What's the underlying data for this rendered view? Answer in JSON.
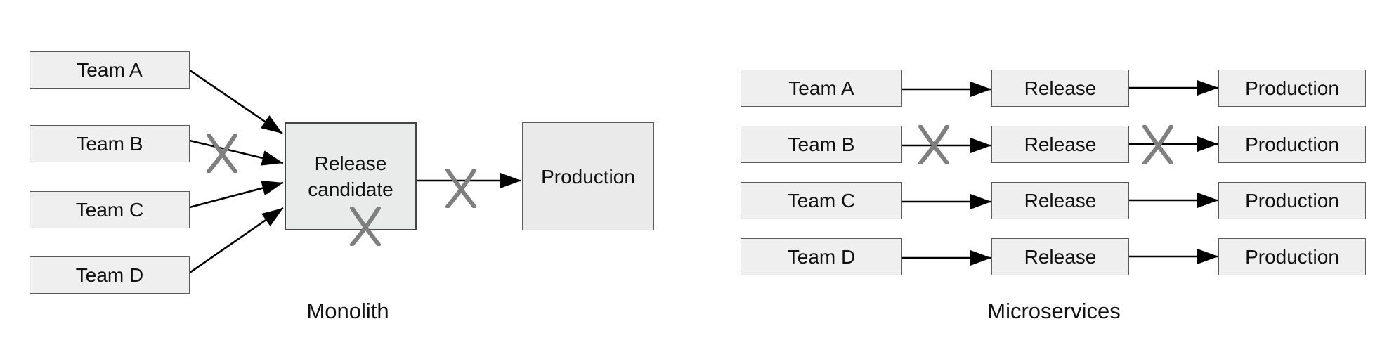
{
  "monolith": {
    "caption": "Monolith",
    "teams": [
      "Team A",
      "Team B",
      "Team C",
      "Team D"
    ],
    "release_candidate": "Release\ncandidate",
    "production": "Production"
  },
  "microservices": {
    "caption": "Microservices",
    "rows": [
      {
        "team": "Team A",
        "release": "Release",
        "production": "Production"
      },
      {
        "team": "Team B",
        "release": "Release",
        "production": "Production"
      },
      {
        "team": "Team C",
        "release": "Release",
        "production": "Production"
      },
      {
        "team": "Team D",
        "release": "Release",
        "production": "Production"
      }
    ]
  },
  "colors": {
    "box_fill": "#efefef",
    "box_border": "#5a5a5a",
    "arrow": "#000000",
    "x_mark": "#7f7f7f"
  }
}
